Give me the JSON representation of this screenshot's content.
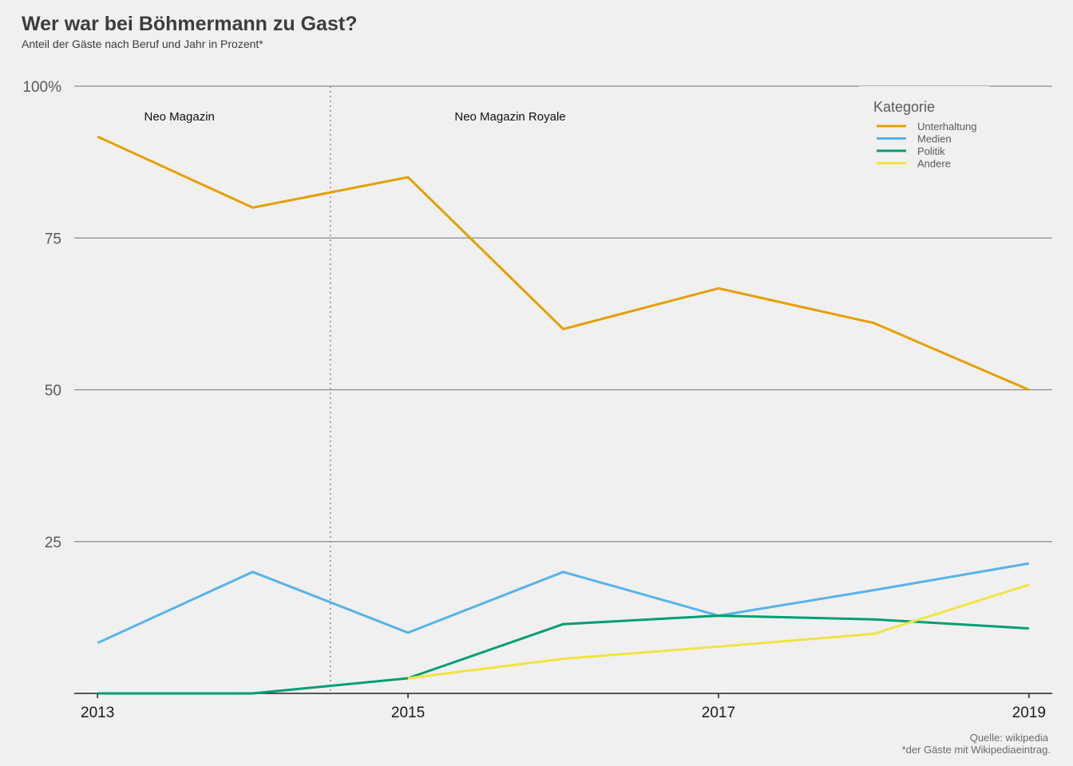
{
  "title": "Wer war bei Böhmermann zu Gast?",
  "subtitle": "Anteil der Gäste nach Beruf und Jahr in Prozent*",
  "caption_source": "Quelle: wikipedia",
  "caption_note": "*der Gäste mit Wikipediaeintrag.",
  "chart_data": {
    "type": "line",
    "x": [
      2013,
      2014,
      2015,
      2016,
      2017,
      2018,
      2019
    ],
    "x_ticks": [
      "2013",
      "2015",
      "2017",
      "2019"
    ],
    "y_ticks": [
      "25",
      "50",
      "75",
      "100%"
    ],
    "y_tick_values": [
      25,
      50,
      75,
      100
    ],
    "ylim": [
      0,
      100
    ],
    "xlim": [
      2012.85,
      2019.15
    ],
    "grid": "horizontal",
    "legend_title": "Kategorie",
    "legend_position": "top-right",
    "series": [
      {
        "name": "Unterhaltung",
        "color": "#E69F00",
        "values": [
          91.7,
          80.0,
          85.0,
          60.0,
          66.7,
          61.0,
          50.0
        ]
      },
      {
        "name": "Medien",
        "color": "#56B4E9",
        "values": [
          8.3,
          20.0,
          10.0,
          20.0,
          12.8,
          17.0,
          21.4
        ]
      },
      {
        "name": "Politik",
        "color": "#009E73",
        "values": [
          0,
          0,
          2.5,
          11.4,
          12.8,
          12.2,
          10.7
        ]
      },
      {
        "name": "Andere",
        "color": "#F0E442",
        "values": [
          null,
          null,
          2.5,
          5.7,
          7.7,
          9.8,
          17.9
        ]
      }
    ],
    "vline": {
      "x": 2014.5,
      "style": "dotted"
    },
    "annotations": [
      {
        "text": "Neo Magazin",
        "x": 2013.3,
        "y": 95
      },
      {
        "text": "Neo Magazin Royale",
        "x": 2015.3,
        "y": 95
      }
    ]
  }
}
